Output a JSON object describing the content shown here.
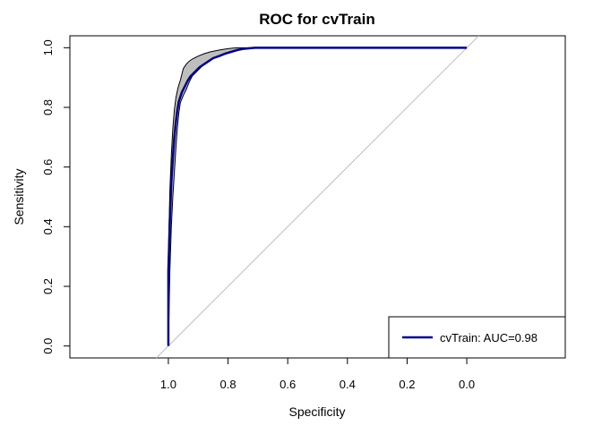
{
  "chart_data": {
    "type": "line",
    "title": "ROC for cvTrain",
    "xlabel": "Specificity",
    "ylabel": "Sensitivity",
    "x_reversed": true,
    "xlim": [
      1.33,
      -0.33
    ],
    "ylim": [
      -0.04,
      1.04
    ],
    "x_ticks": [
      "1.0",
      "0.8",
      "0.6",
      "0.4",
      "0.2",
      "0.0"
    ],
    "y_ticks": [
      "0.0",
      "0.2",
      "0.4",
      "0.6",
      "0.8",
      "1.0"
    ],
    "grid": false,
    "legend_position": "bottom-right",
    "legend_label": "cvTrain: AUC=0.98",
    "colors": {
      "roc": "#00008b",
      "band": "#bebebe",
      "reference": "#bebebe"
    },
    "series": [
      {
        "name": "cvTrain: AUC=0.98",
        "specificity": [
          1.0,
          1.0,
          1.0,
          0.995,
          0.99,
          0.985,
          0.98,
          0.975,
          0.97,
          0.965,
          0.955,
          0.945,
          0.935,
          0.925,
          0.91,
          0.895,
          0.88,
          0.865,
          0.85,
          0.83,
          0.81,
          0.79,
          0.77,
          0.75,
          0.73,
          0.71,
          0.7,
          0.5,
          0.3,
          0.0
        ],
        "sensitivity": [
          0.0,
          0.12,
          0.25,
          0.42,
          0.55,
          0.63,
          0.7,
          0.75,
          0.79,
          0.82,
          0.85,
          0.87,
          0.89,
          0.905,
          0.92,
          0.935,
          0.945,
          0.955,
          0.965,
          0.972,
          0.98,
          0.986,
          0.992,
          0.996,
          0.998,
          1.0,
          1.0,
          1.0,
          1.0,
          1.0
        ]
      }
    ],
    "confidence_band": {
      "specificity": [
        1.0,
        0.995,
        0.99,
        0.985,
        0.98,
        0.975,
        0.97,
        0.965,
        0.96,
        0.95,
        0.94,
        0.93,
        0.92,
        0.9,
        0.88,
        0.86,
        0.84,
        0.82,
        0.8,
        0.78,
        0.76,
        0.74,
        0.72,
        0.7
      ],
      "upper": [
        0.3,
        0.52,
        0.64,
        0.73,
        0.79,
        0.83,
        0.855,
        0.875,
        0.89,
        0.93,
        0.945,
        0.955,
        0.962,
        0.972,
        0.98,
        0.986,
        0.99,
        0.994,
        0.997,
        0.999,
        1.0,
        1.0,
        1.0,
        1.0
      ],
      "lower": [
        0.0,
        0.25,
        0.4,
        0.5,
        0.58,
        0.66,
        0.73,
        0.78,
        0.815,
        0.84,
        0.86,
        0.885,
        0.905,
        0.925,
        0.945,
        0.96,
        0.97,
        0.978,
        0.985,
        0.99,
        0.994,
        0.997,
        0.999,
        1.0
      ]
    }
  }
}
